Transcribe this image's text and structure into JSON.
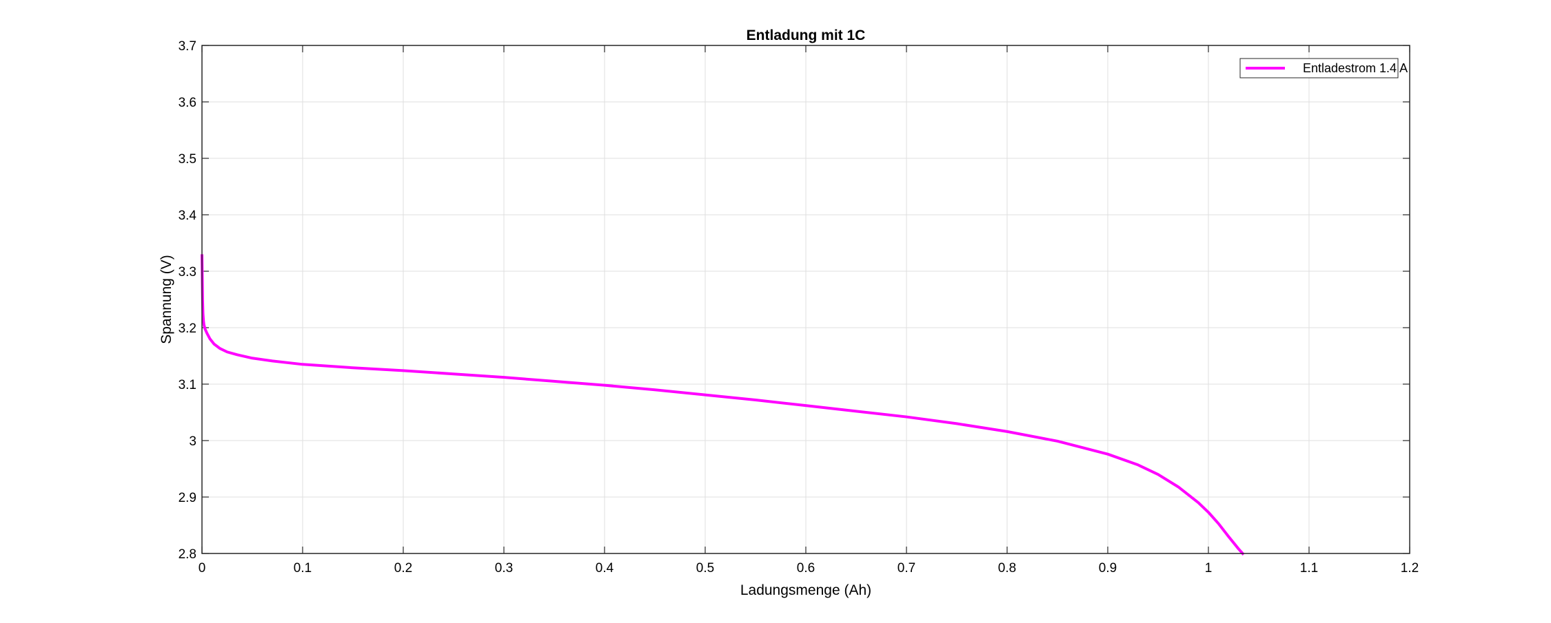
{
  "chart_data": {
    "type": "line",
    "title": "Entladung mit 1C",
    "xlabel": "Ladungsmenge (Ah)",
    "ylabel": "Spannung (V)",
    "xlim": [
      0,
      1.2
    ],
    "ylim": [
      2.8,
      3.7
    ],
    "xticks": [
      0,
      0.1,
      0.2,
      0.3,
      0.4,
      0.5,
      0.6,
      0.7,
      0.8,
      0.9,
      1,
      1.1,
      1.2
    ],
    "xtick_labels": [
      "0",
      "0.1",
      "0.2",
      "0.3",
      "0.4",
      "0.5",
      "0.6",
      "0.7",
      "0.8",
      "0.9",
      "1",
      "1.1",
      "1.2"
    ],
    "yticks": [
      2.8,
      2.9,
      3,
      3.1,
      3.2,
      3.3,
      3.4,
      3.5,
      3.6,
      3.7
    ],
    "ytick_labels": [
      "2.8",
      "2.9",
      "3",
      "3.1",
      "3.2",
      "3.3",
      "3.4",
      "3.5",
      "3.6",
      "3.7"
    ],
    "grid": true,
    "legend_position": "top-right",
    "series": [
      {
        "name": "Entladestrom 1.4 A",
        "color": "#ff00ff",
        "x": [
          0,
          0.0003,
          0.0006,
          0.001,
          0.0015,
          0.002,
          0.003,
          0.005,
          0.008,
          0.012,
          0.018,
          0.025,
          0.035,
          0.05,
          0.07,
          0.1,
          0.15,
          0.2,
          0.25,
          0.3,
          0.35,
          0.4,
          0.45,
          0.5,
          0.55,
          0.6,
          0.65,
          0.7,
          0.75,
          0.8,
          0.85,
          0.9,
          0.93,
          0.95,
          0.97,
          0.99,
          1.0,
          1.01,
          1.02,
          1.03,
          1.035
        ],
        "y": [
          3.33,
          3.29,
          3.25,
          3.225,
          3.212,
          3.205,
          3.198,
          3.19,
          3.18,
          3.171,
          3.163,
          3.157,
          3.152,
          3.146,
          3.141,
          3.135,
          3.129,
          3.124,
          3.118,
          3.112,
          3.105,
          3.098,
          3.09,
          3.081,
          3.072,
          3.062,
          3.052,
          3.042,
          3.03,
          3.016,
          2.999,
          2.976,
          2.957,
          2.94,
          2.918,
          2.89,
          2.873,
          2.853,
          2.83,
          2.808,
          2.798
        ]
      }
    ]
  }
}
